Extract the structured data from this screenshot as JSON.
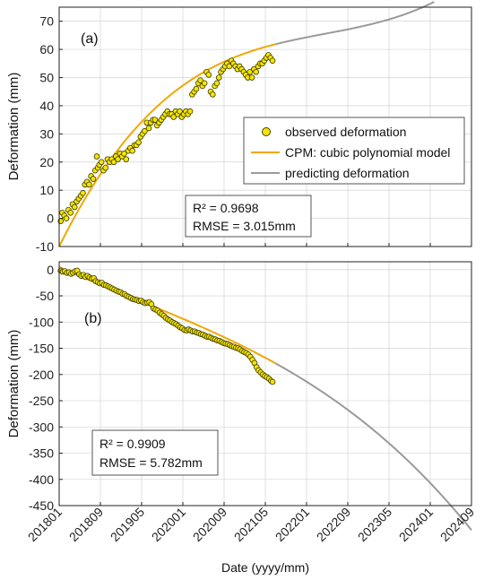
{
  "x_axis": {
    "label": "Date (yyyy/mm)",
    "ticks": [
      "201801",
      "201809",
      "201905",
      "202001",
      "202009",
      "202105",
      "202201",
      "202209",
      "202305",
      "202401",
      "202409"
    ]
  },
  "chart_data": [
    {
      "type": "scatter",
      "panel_label": "(a)",
      "ylabel": "Deformation  (mm)",
      "ylim": [
        -10,
        75
      ],
      "yticks": [
        -10,
        0,
        10,
        20,
        30,
        40,
        50,
        60,
        70
      ],
      "xlim": [
        0,
        80
      ],
      "x_unit": "months since 2018/01",
      "grid": true,
      "legend_position": "right",
      "legend": [
        "observed deformation",
        "CPM: cubic polynomial model",
        "predicting deformation"
      ],
      "stats": [
        "R² = 0.9698",
        "RMSE = 3.015mm"
      ],
      "fit": {
        "a": -10,
        "b": 3.7,
        "c": -0.065,
        "d": 0.00042
      },
      "series": [
        {
          "name": "observed deformation",
          "points": [
            [
              0.3,
              -1
            ],
            [
              0.6,
              2
            ],
            [
              1.0,
              1
            ],
            [
              1.4,
              0
            ],
            [
              1.8,
              3
            ],
            [
              2.2,
              2
            ],
            [
              2.6,
              5
            ],
            [
              3.0,
              4
            ],
            [
              3.4,
              6
            ],
            [
              3.8,
              7
            ],
            [
              4.2,
              8
            ],
            [
              4.6,
              9
            ],
            [
              5.0,
              12
            ],
            [
              5.4,
              13
            ],
            [
              5.8,
              12
            ],
            [
              6.2,
              15
            ],
            [
              6.6,
              14
            ],
            [
              7.0,
              17
            ],
            [
              7.3,
              22
            ],
            [
              7.5,
              18
            ],
            [
              7.8,
              19
            ],
            [
              8.2,
              20
            ],
            [
              8.6,
              17
            ],
            [
              9.0,
              18
            ],
            [
              9.4,
              21
            ],
            [
              9.8,
              20
            ],
            [
              10.2,
              21
            ],
            [
              10.6,
              20
            ],
            [
              11.0,
              22
            ],
            [
              11.4,
              21
            ],
            [
              11.8,
              23
            ],
            [
              12.2,
              22
            ],
            [
              12.6,
              23
            ],
            [
              13.0,
              21
            ],
            [
              13.4,
              24
            ],
            [
              13.8,
              25
            ],
            [
              14.2,
              24
            ],
            [
              14.6,
              26
            ],
            [
              15.0,
              26
            ],
            [
              15.4,
              27
            ],
            [
              15.8,
              29
            ],
            [
              16.2,
              30
            ],
            [
              16.6,
              31
            ],
            [
              17.0,
              34
            ],
            [
              17.4,
              32
            ],
            [
              17.8,
              34
            ],
            [
              18.2,
              35
            ],
            [
              18.6,
              35
            ],
            [
              19.0,
              33
            ],
            [
              19.4,
              34
            ],
            [
              19.8,
              35
            ],
            [
              20.2,
              36
            ],
            [
              20.6,
              37
            ],
            [
              21.0,
              38
            ],
            [
              21.4,
              37
            ],
            [
              21.8,
              37
            ],
            [
              22.2,
              36
            ],
            [
              22.6,
              38
            ],
            [
              23.0,
              37
            ],
            [
              23.4,
              38
            ],
            [
              23.8,
              36
            ],
            [
              24.2,
              37
            ],
            [
              24.6,
              38
            ],
            [
              25.0,
              37
            ],
            [
              25.4,
              38
            ],
            [
              25.8,
              44
            ],
            [
              26.2,
              45
            ],
            [
              26.6,
              46
            ],
            [
              27.0,
              48
            ],
            [
              27.4,
              49
            ],
            [
              27.8,
              47
            ],
            [
              28.2,
              48
            ],
            [
              28.6,
              52
            ],
            [
              29.0,
              51
            ],
            [
              29.4,
              45
            ],
            [
              29.8,
              44
            ],
            [
              30.2,
              47
            ],
            [
              30.6,
              48
            ],
            [
              31.0,
              50
            ],
            [
              31.4,
              52
            ],
            [
              31.8,
              53
            ],
            [
              32.2,
              54
            ],
            [
              32.6,
              55
            ],
            [
              33.0,
              54
            ],
            [
              33.4,
              56
            ],
            [
              33.8,
              55
            ],
            [
              34.2,
              54
            ],
            [
              34.6,
              53
            ],
            [
              35.0,
              54
            ],
            [
              35.4,
              53
            ],
            [
              35.8,
              52
            ],
            [
              36.2,
              51
            ],
            [
              36.6,
              50
            ],
            [
              37.0,
              52
            ],
            [
              37.4,
              50
            ],
            [
              37.8,
              53
            ],
            [
              38.2,
              52
            ],
            [
              38.6,
              54
            ],
            [
              39.0,
              55
            ],
            [
              39.4,
              55
            ],
            [
              39.8,
              56
            ],
            [
              40.2,
              57
            ],
            [
              40.6,
              58
            ],
            [
              41.0,
              57
            ],
            [
              41.4,
              56
            ]
          ]
        },
        {
          "name": "CPM: cubic polynomial model",
          "x_range": [
            0,
            42
          ]
        },
        {
          "name": "predicting deformation",
          "x_range": [
            42,
            80
          ]
        }
      ]
    },
    {
      "type": "scatter",
      "panel_label": "(b)",
      "ylabel": "Deformation  (mm)",
      "ylim": [
        -450,
        15
      ],
      "yticks": [
        -450,
        -400,
        -350,
        -300,
        -250,
        -200,
        -150,
        -100,
        -50,
        0
      ],
      "xlim": [
        0,
        80
      ],
      "x_unit": "months since 2018/01",
      "grid": true,
      "stats": [
        "R² = 0.9909",
        "RMSE = 5.782mm"
      ],
      "fit": {
        "a": 5,
        "b": -4.4,
        "c": 0.027,
        "d": -0.00063
      },
      "series": [
        {
          "name": "observed deformation",
          "points": [
            [
              0.3,
              -2
            ],
            [
              0.7,
              -4
            ],
            [
              1.1,
              -3
            ],
            [
              1.5,
              -6
            ],
            [
              1.9,
              -5
            ],
            [
              2.3,
              -8
            ],
            [
              2.7,
              -6
            ],
            [
              3.1,
              -3
            ],
            [
              3.5,
              -2
            ],
            [
              3.9,
              -9
            ],
            [
              4.3,
              -12
            ],
            [
              4.7,
              -10
            ],
            [
              5.1,
              -14
            ],
            [
              5.5,
              -12
            ],
            [
              5.9,
              -15
            ],
            [
              6.3,
              -17
            ],
            [
              6.7,
              -16
            ],
            [
              7.1,
              -22
            ],
            [
              7.5,
              -24
            ],
            [
              7.9,
              -26
            ],
            [
              8.3,
              -25
            ],
            [
              8.7,
              -29
            ],
            [
              9.1,
              -30
            ],
            [
              9.5,
              -32
            ],
            [
              9.9,
              -34
            ],
            [
              10.3,
              -36
            ],
            [
              10.7,
              -38
            ],
            [
              11.1,
              -40
            ],
            [
              11.5,
              -42
            ],
            [
              11.9,
              -43
            ],
            [
              12.3,
              -46
            ],
            [
              12.7,
              -47
            ],
            [
              13.1,
              -50
            ],
            [
              13.5,
              -52
            ],
            [
              13.9,
              -54
            ],
            [
              14.3,
              -56
            ],
            [
              14.7,
              -57
            ],
            [
              15.1,
              -58
            ],
            [
              15.5,
              -60
            ],
            [
              15.9,
              -59
            ],
            [
              16.3,
              -62
            ],
            [
              16.7,
              -64
            ],
            [
              17.1,
              -63
            ],
            [
              17.5,
              -62
            ],
            [
              17.9,
              -66
            ],
            [
              18.3,
              -74
            ],
            [
              18.7,
              -76
            ],
            [
              19.1,
              -78
            ],
            [
              19.5,
              -82
            ],
            [
              19.9,
              -85
            ],
            [
              20.3,
              -88
            ],
            [
              20.7,
              -92
            ],
            [
              21.1,
              -95
            ],
            [
              21.5,
              -97
            ],
            [
              21.9,
              -100
            ],
            [
              22.3,
              -102
            ],
            [
              22.7,
              -104
            ],
            [
              23.1,
              -107
            ],
            [
              23.5,
              -110
            ],
            [
              23.9,
              -112
            ],
            [
              24.3,
              -115
            ],
            [
              24.7,
              -116
            ],
            [
              25.1,
              -114
            ],
            [
              25.5,
              -116
            ],
            [
              25.9,
              -118
            ],
            [
              26.3,
              -118
            ],
            [
              26.7,
              -120
            ],
            [
              27.1,
              -121
            ],
            [
              27.5,
              -123
            ],
            [
              27.9,
              -124
            ],
            [
              28.3,
              -126
            ],
            [
              28.7,
              -128
            ],
            [
              29.1,
              -128
            ],
            [
              29.5,
              -130
            ],
            [
              29.9,
              -132
            ],
            [
              30.3,
              -133
            ],
            [
              30.7,
              -135
            ],
            [
              31.1,
              -136
            ],
            [
              31.5,
              -138
            ],
            [
              31.9,
              -140
            ],
            [
              32.3,
              -141
            ],
            [
              32.7,
              -142
            ],
            [
              33.1,
              -144
            ],
            [
              33.5,
              -146
            ],
            [
              33.9,
              -147
            ],
            [
              34.3,
              -149
            ],
            [
              34.7,
              -150
            ],
            [
              35.1,
              -152
            ],
            [
              35.5,
              -155
            ],
            [
              35.9,
              -157
            ],
            [
              36.3,
              -159
            ],
            [
              36.7,
              -162
            ],
            [
              37.1,
              -166
            ],
            [
              37.5,
              -172
            ],
            [
              37.9,
              -178
            ],
            [
              38.3,
              -186
            ],
            [
              38.7,
              -192
            ],
            [
              39.1,
              -196
            ],
            [
              39.5,
              -200
            ],
            [
              39.9,
              -203
            ],
            [
              40.3,
              -205
            ],
            [
              40.7,
              -208
            ],
            [
              41.1,
              -212
            ],
            [
              41.4,
              -214
            ]
          ]
        },
        {
          "name": "CPM: cubic polynomial model",
          "x_range": [
            0,
            42
          ]
        },
        {
          "name": "predicting deformation",
          "x_range": [
            42,
            80
          ]
        }
      ]
    }
  ],
  "colors": {
    "marker_fill": "#f5e400",
    "marker_edge": "#3a3a00",
    "fit_line": "#f0a800",
    "predict_line": "#9a9a9a",
    "grid": "#cccccc"
  }
}
